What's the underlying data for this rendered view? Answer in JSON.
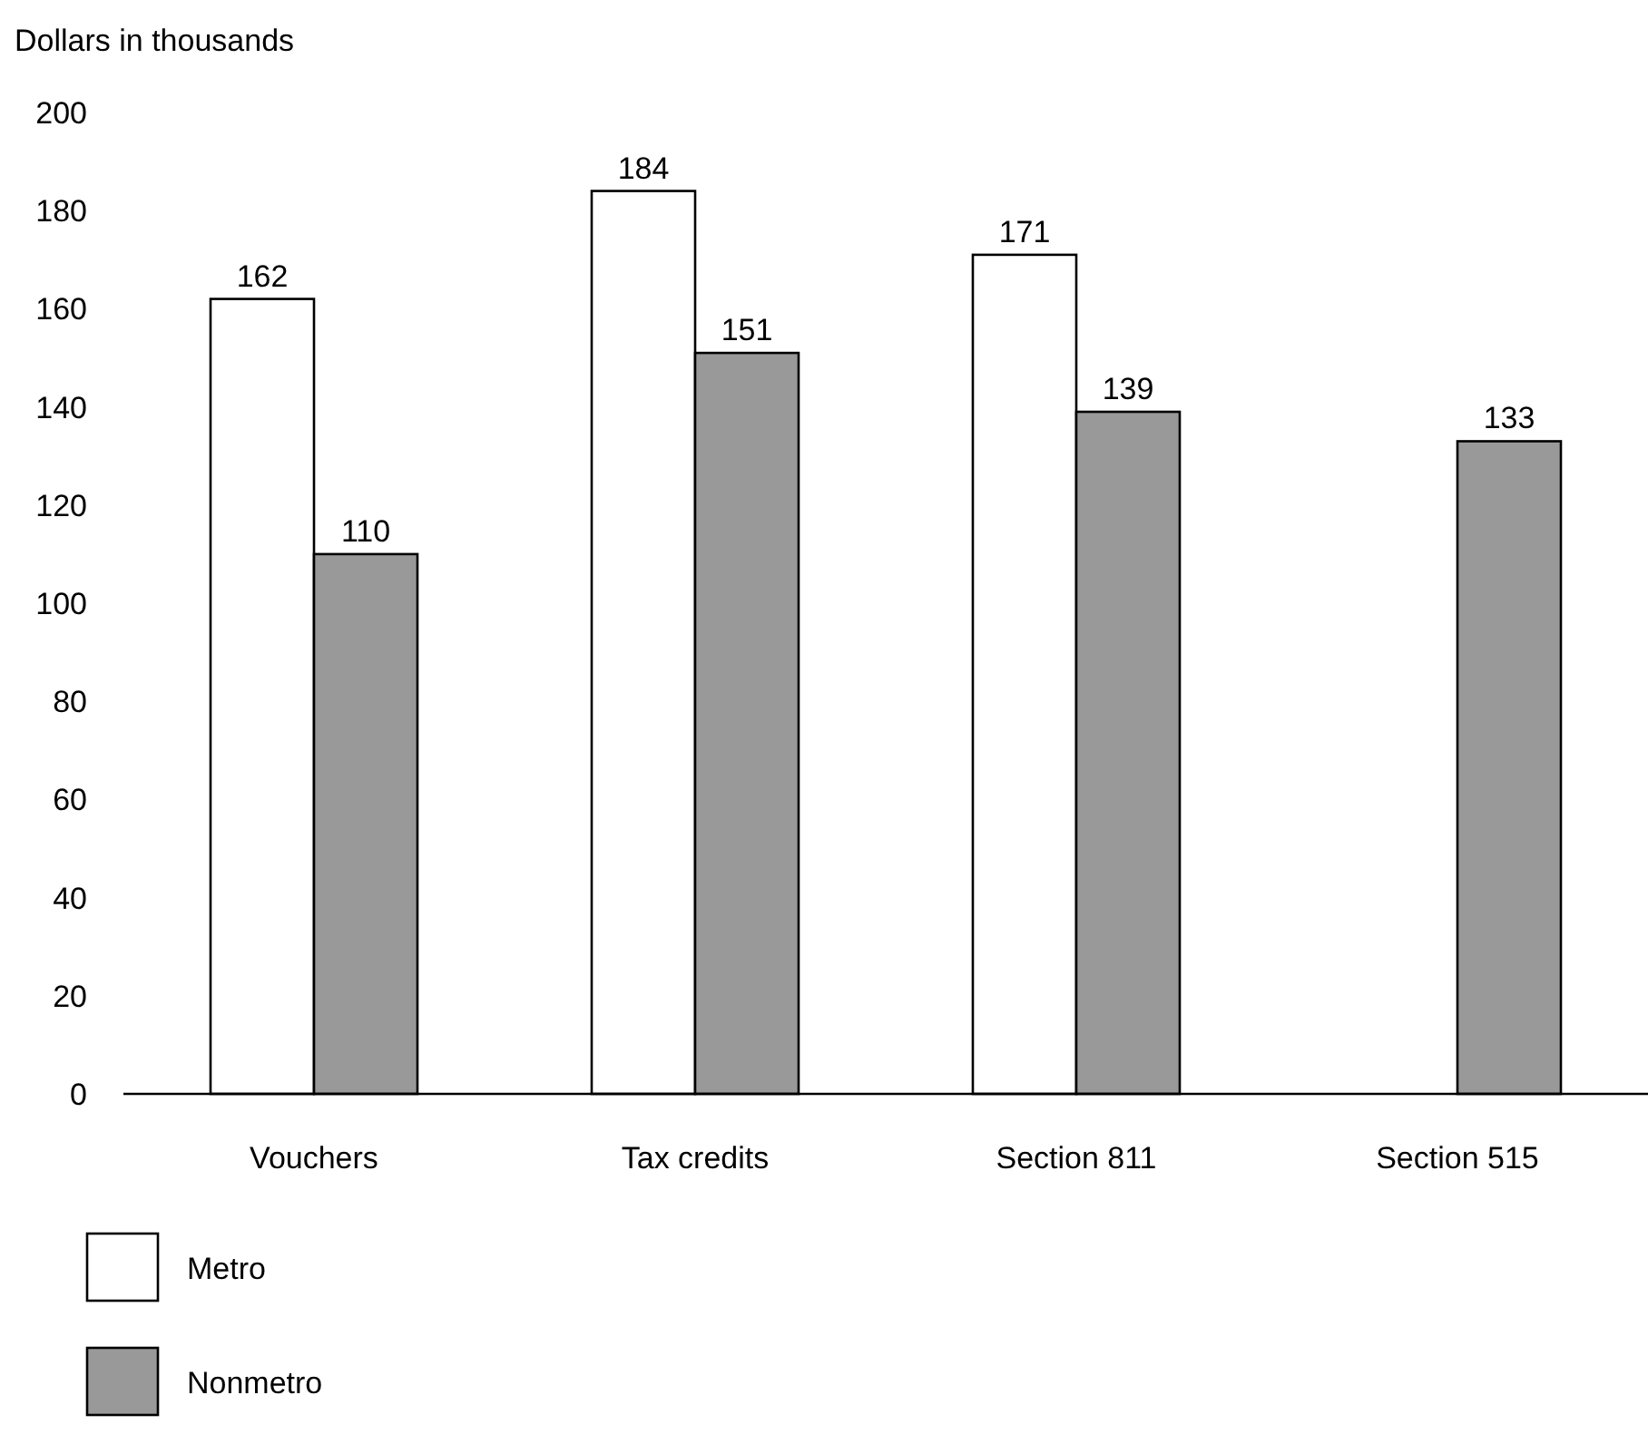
{
  "chart_data": {
    "type": "bar",
    "ylabel": "Dollars in thousands",
    "categories": [
      "Vouchers",
      "Tax credits",
      "Section 811",
      "Section 515"
    ],
    "series": [
      {
        "name": "Metro",
        "color": "#ffffff",
        "values": [
          162,
          184,
          171,
          null
        ]
      },
      {
        "name": "Nonmetro",
        "color": "#999999",
        "values": [
          110,
          151,
          139,
          133
        ]
      }
    ],
    "ylim": [
      0,
      200
    ],
    "yticks": [
      0,
      20,
      40,
      60,
      80,
      100,
      120,
      140,
      160,
      180,
      200
    ],
    "data_labels": true,
    "grid": false,
    "legend": "bottom left"
  }
}
